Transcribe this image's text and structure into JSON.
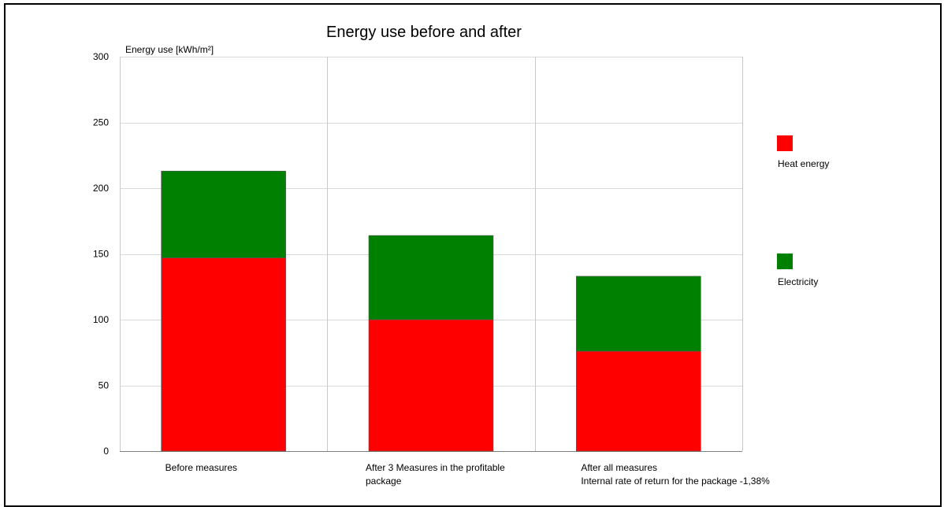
{
  "chart_data": {
    "type": "bar",
    "stacked": true,
    "title": "Energy use before and after",
    "ylabel": "Energy use [kWh/m²]",
    "xlabel": "",
    "ylim": [
      0,
      300
    ],
    "yticks": [
      0,
      50,
      100,
      150,
      200,
      250,
      300
    ],
    "grid": true,
    "legend_position": "right",
    "categories": [
      [
        "Before measures"
      ],
      [
        "After 3 Measures in the profitable",
        "package"
      ],
      [
        "After all measures",
        "Internal rate of return for the package -1,38%"
      ]
    ],
    "series": [
      {
        "name": "Heat energy",
        "color": "#ff0000",
        "values": [
          147,
          100,
          76
        ]
      },
      {
        "name": "Electricity",
        "color": "#008000",
        "values": [
          66,
          64,
          57
        ]
      }
    ]
  }
}
